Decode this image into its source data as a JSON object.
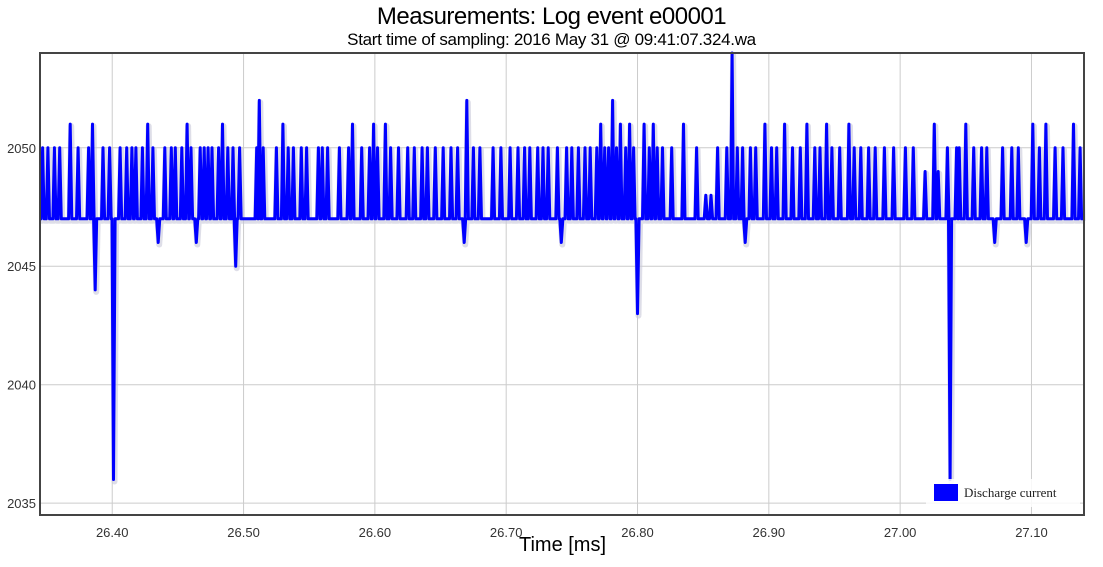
{
  "chart_data": {
    "type": "line",
    "title": "Measurements: Log event e00001",
    "subtitle": "Start time of sampling: 2016 May 31 @ 09:41:07.324.wa",
    "xlabel": "Time [ms]",
    "ylabel": "",
    "xlim": [
      26.345,
      27.14
    ],
    "ylim": [
      2034.5,
      2054
    ],
    "x_ticks": [
      26.4,
      26.5,
      26.6,
      26.7,
      26.8,
      26.9,
      27.0,
      27.1
    ],
    "x_tick_labels": [
      "26.40",
      "26.50",
      "26.60",
      "26.70",
      "26.80",
      "26.90",
      "27.00",
      "27.10"
    ],
    "y_ticks": [
      2035,
      2040,
      2045,
      2050
    ],
    "y_tick_labels": [
      "2035",
      "2040",
      "2045",
      "2050"
    ],
    "grid": true,
    "legend_position": "bottom-right",
    "series": [
      {
        "name": "Discharge current",
        "color": "#0000ff",
        "baseline": 2047,
        "spikes": [
          [
            26.347,
            2050
          ],
          [
            26.351,
            2050
          ],
          [
            26.356,
            2050
          ],
          [
            26.36,
            2050
          ],
          [
            26.368,
            2051
          ],
          [
            26.374,
            2050
          ],
          [
            26.382,
            2050
          ],
          [
            26.385,
            2051
          ],
          [
            26.387,
            2044
          ],
          [
            26.393,
            2050
          ],
          [
            26.398,
            2050
          ],
          [
            26.401,
            2036
          ],
          [
            26.406,
            2050
          ],
          [
            26.411,
            2050
          ],
          [
            26.415,
            2050
          ],
          [
            26.418,
            2050
          ],
          [
            26.423,
            2050
          ],
          [
            26.427,
            2051
          ],
          [
            26.431,
            2050
          ],
          [
            26.435,
            2046
          ],
          [
            26.44,
            2050
          ],
          [
            26.445,
            2050
          ],
          [
            26.448,
            2050
          ],
          [
            26.453,
            2050
          ],
          [
            26.457,
            2051
          ],
          [
            26.46,
            2050
          ],
          [
            26.464,
            2046
          ],
          [
            26.467,
            2050
          ],
          [
            26.47,
            2050
          ],
          [
            26.473,
            2050
          ],
          [
            26.476,
            2050
          ],
          [
            26.481,
            2050
          ],
          [
            26.484,
            2051
          ],
          [
            26.488,
            2050
          ],
          [
            26.492,
            2050
          ],
          [
            26.494,
            2045
          ],
          [
            26.497,
            2050
          ],
          [
            26.51,
            2050
          ],
          [
            26.512,
            2052
          ],
          [
            26.515,
            2050
          ],
          [
            26.525,
            2050
          ],
          [
            26.53,
            2051
          ],
          [
            26.534,
            2050
          ],
          [
            26.538,
            2050
          ],
          [
            26.544,
            2050
          ],
          [
            26.548,
            2050
          ],
          [
            26.557,
            2050
          ],
          [
            26.56,
            2050
          ],
          [
            26.564,
            2050
          ],
          [
            26.573,
            2050
          ],
          [
            26.58,
            2050
          ],
          [
            26.583,
            2051
          ],
          [
            26.59,
            2050
          ],
          [
            26.596,
            2050
          ],
          [
            26.599,
            2051
          ],
          [
            26.602,
            2050
          ],
          [
            26.608,
            2051
          ],
          [
            26.612,
            2050
          ],
          [
            26.618,
            2050
          ],
          [
            26.625,
            2050
          ],
          [
            26.63,
            2050
          ],
          [
            26.636,
            2050
          ],
          [
            26.64,
            2050
          ],
          [
            26.646,
            2050
          ],
          [
            26.652,
            2050
          ],
          [
            26.658,
            2050
          ],
          [
            26.663,
            2050
          ],
          [
            26.668,
            2046
          ],
          [
            26.67,
            2052
          ],
          [
            26.675,
            2050
          ],
          [
            26.68,
            2050
          ],
          [
            26.69,
            2050
          ],
          [
            26.696,
            2050
          ],
          [
            26.703,
            2050
          ],
          [
            26.709,
            2050
          ],
          [
            26.714,
            2050
          ],
          [
            26.718,
            2050
          ],
          [
            26.724,
            2050
          ],
          [
            26.728,
            2050
          ],
          [
            26.732,
            2050
          ],
          [
            26.739,
            2050
          ],
          [
            26.742,
            2046
          ],
          [
            26.746,
            2050
          ],
          [
            26.75,
            2050
          ],
          [
            26.755,
            2050
          ],
          [
            26.76,
            2050
          ],
          [
            26.764,
            2050
          ],
          [
            26.769,
            2050
          ],
          [
            26.772,
            2051
          ],
          [
            26.775,
            2050
          ],
          [
            26.778,
            2050
          ],
          [
            26.781,
            2052
          ],
          [
            26.784,
            2050
          ],
          [
            26.787,
            2051
          ],
          [
            26.791,
            2050
          ],
          [
            26.794,
            2051
          ],
          [
            26.797,
            2050
          ],
          [
            26.8,
            2043
          ],
          [
            26.805,
            2051
          ],
          [
            26.809,
            2050
          ],
          [
            26.812,
            2051
          ],
          [
            26.815,
            2050
          ],
          [
            26.819,
            2050
          ],
          [
            26.826,
            2050
          ],
          [
            26.835,
            2051
          ],
          [
            26.845,
            2050
          ],
          [
            26.852,
            2048
          ],
          [
            26.856,
            2048
          ],
          [
            26.861,
            2050
          ],
          [
            26.868,
            2050
          ],
          [
            26.872,
            2054
          ],
          [
            26.876,
            2050
          ],
          [
            26.88,
            2050
          ],
          [
            26.882,
            2046
          ],
          [
            26.886,
            2050
          ],
          [
            26.89,
            2050
          ],
          [
            26.897,
            2051
          ],
          [
            26.902,
            2050
          ],
          [
            26.906,
            2050
          ],
          [
            26.912,
            2051
          ],
          [
            26.918,
            2050
          ],
          [
            26.924,
            2050
          ],
          [
            26.929,
            2051
          ],
          [
            26.935,
            2050
          ],
          [
            26.939,
            2050
          ],
          [
            26.944,
            2051
          ],
          [
            26.948,
            2050
          ],
          [
            26.954,
            2050
          ],
          [
            26.961,
            2051
          ],
          [
            26.965,
            2050
          ],
          [
            26.97,
            2050
          ],
          [
            26.976,
            2050
          ],
          [
            26.981,
            2050
          ],
          [
            26.988,
            2050
          ],
          [
            26.995,
            2050
          ],
          [
            27.004,
            2050
          ],
          [
            27.01,
            2050
          ],
          [
            27.019,
            2049
          ],
          [
            27.026,
            2051
          ],
          [
            27.029,
            2049
          ],
          [
            27.036,
            2050
          ],
          [
            27.038,
            2036
          ],
          [
            27.043,
            2050
          ],
          [
            27.045,
            2050
          ],
          [
            27.05,
            2051
          ],
          [
            27.056,
            2050
          ],
          [
            27.062,
            2050
          ],
          [
            27.066,
            2050
          ],
          [
            27.072,
            2046
          ],
          [
            27.078,
            2050
          ],
          [
            27.085,
            2050
          ],
          [
            27.09,
            2050
          ],
          [
            27.096,
            2046
          ],
          [
            27.101,
            2051
          ],
          [
            27.106,
            2050
          ],
          [
            27.111,
            2051
          ],
          [
            27.118,
            2050
          ],
          [
            27.124,
            2050
          ],
          [
            27.132,
            2051
          ],
          [
            27.137,
            2050
          ]
        ]
      }
    ]
  }
}
